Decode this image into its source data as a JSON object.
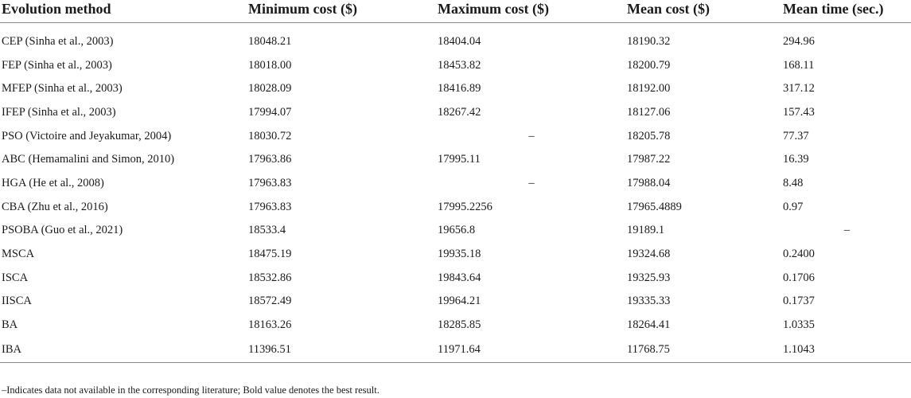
{
  "table": {
    "headers": [
      "Evolution method",
      "Minimum cost ($)",
      "Maximum cost ($)",
      "Mean cost ($)",
      "Mean time (sec.)"
    ],
    "rows": [
      [
        "CEP (Sinha et al., 2003)",
        "18048.21",
        "18404.04",
        "18190.32",
        "294.96"
      ],
      [
        "FEP (Sinha et al., 2003)",
        "18018.00",
        "18453.82",
        "18200.79",
        "168.11"
      ],
      [
        "MFEP (Sinha et al., 2003)",
        "18028.09",
        "18416.89",
        "18192.00",
        "317.12"
      ],
      [
        "IFEP (Sinha et al., 2003)",
        "17994.07",
        "18267.42",
        "18127.06",
        "157.43"
      ],
      [
        "PSO (Victoire and Jeyakumar, 2004)",
        "18030.72",
        "–",
        "18205.78",
        "77.37"
      ],
      [
        "ABC (Hemamalini and Simon, 2010)",
        "17963.86",
        "17995.11",
        "17987.22",
        "16.39"
      ],
      [
        "HGA (He et al., 2008)",
        "17963.83",
        "–",
        "17988.04",
        "8.48"
      ],
      [
        "CBA (Zhu et al., 2016)",
        "17963.83",
        "17995.2256",
        "17965.4889",
        "0.97"
      ],
      [
        "PSOBA (Guo et al., 2021)",
        "18533.4",
        "19656.8",
        "19189.1",
        "–"
      ],
      [
        "MSCA",
        "18475.19",
        "19935.18",
        "19324.68",
        "0.2400"
      ],
      [
        "ISCA",
        "18532.86",
        "19843.64",
        "19325.93",
        "0.1706"
      ],
      [
        "IISCA",
        "18572.49",
        "19964.21",
        "19335.33",
        "0.1737"
      ],
      [
        "BA",
        "18163.26",
        "18285.85",
        "18264.41",
        "1.0335"
      ],
      [
        "IBA",
        "11396.51",
        "11971.64",
        "11768.75",
        "1.1043"
      ]
    ]
  },
  "footnote": "–Indicates data not available in the corresponding literature; Bold value denotes the best result."
}
